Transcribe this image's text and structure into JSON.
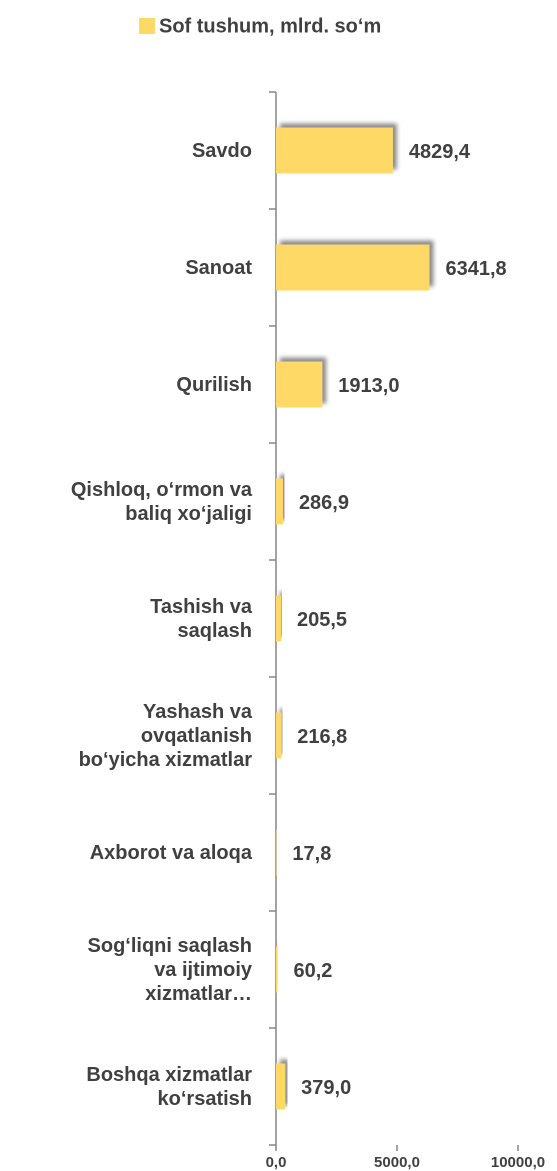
{
  "chart_data": {
    "type": "bar",
    "orientation": "horizontal",
    "legend": "top",
    "categories": [
      "Savdo",
      "Sanoat",
      "Qurilish",
      "Qishloq, o‘rmon va\nbaliq xo‘jaligi",
      "Tashish va\nsaqlash",
      "Yashash va\novqatlanish\nbo‘yicha xizmatlar",
      "Axborot va aloqa",
      "Sog‘liqni saqlash\nva ijtimoiy\nxizmatlar…",
      "Boshqa xizmatlar\nko‘rsatish"
    ],
    "series": [
      {
        "name": "Sof tushum, mlrd. so‘m",
        "color": "#ffd966",
        "values": [
          4829.4,
          6341.8,
          1913.0,
          286.9,
          205.5,
          216.8,
          17.8,
          60.2,
          379.0
        ],
        "value_labels": [
          "4829,4",
          "6341,8",
          "1913,0",
          "286,9",
          "205,5",
          "216,8",
          "17,8",
          "60,2",
          "379,0"
        ]
      }
    ],
    "xlim": [
      0,
      10000
    ],
    "xticks": [
      {
        "value": 0,
        "label": "0,0"
      },
      {
        "value": 5000,
        "label": "5000,0"
      },
      {
        "value": 10000,
        "label": "10000,0"
      }
    ]
  }
}
